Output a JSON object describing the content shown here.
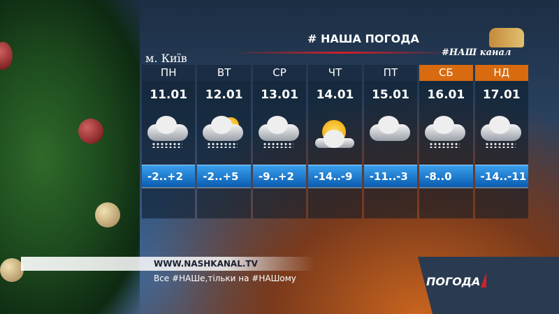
{
  "header": {
    "title": "# НАША ПОГОДА",
    "channel_logo": "#НАШ канал",
    "city": "м. Київ"
  },
  "forecast": [
    {
      "day": "ПН",
      "date": "11.01",
      "temp": "-2..+2",
      "icon": "cloud-snow-icon",
      "weekend": false
    },
    {
      "day": "ВТ",
      "date": "12.01",
      "temp": "-2..+5",
      "icon": "partly-cloudy-icon",
      "weekend": false
    },
    {
      "day": "СР",
      "date": "13.01",
      "temp": "-9..+2",
      "icon": "cloud-snow-icon",
      "weekend": false
    },
    {
      "day": "ЧТ",
      "date": "14.01",
      "temp": "-14..-9",
      "icon": "sun-cloud-icon",
      "weekend": false
    },
    {
      "day": "ПТ",
      "date": "15.01",
      "temp": "-11..-3",
      "icon": "cloud-icon",
      "weekend": false
    },
    {
      "day": "СБ",
      "date": "16.01",
      "temp": "-8..0",
      "icon": "cloud-snow-icon",
      "weekend": true
    },
    {
      "day": "НД",
      "date": "17.01",
      "temp": "-14..-11",
      "icon": "cloud-snow-icon",
      "weekend": true
    }
  ],
  "footer": {
    "url": "WWW.NASHKANAL.TV",
    "slogan": "Все #НАШе,тільки на #НАШому",
    "program": "ПОГОДА"
  },
  "colors": {
    "weekend": "#d86a10",
    "temp_band": "#1a7ad0",
    "weekday": "#1a2d44"
  }
}
